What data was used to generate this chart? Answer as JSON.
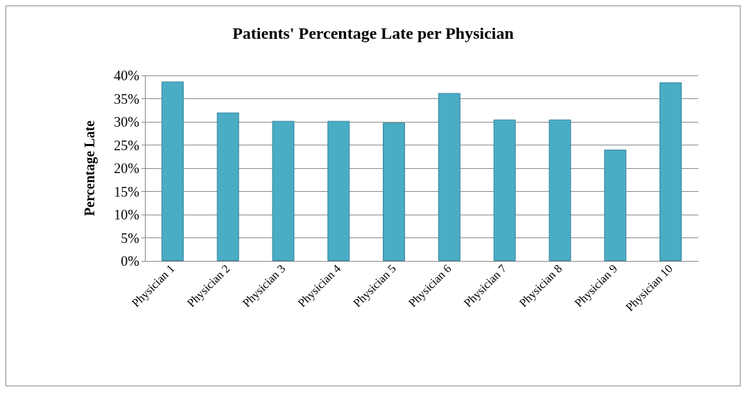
{
  "chart_data": {
    "type": "bar",
    "title": "Patients' Percentage Late per Physician",
    "ylabel": "Percentage Late",
    "categories": [
      "Physician 1",
      "Physician 2",
      "Physician 3",
      "Physician 4",
      "Physician 5",
      "Physician 6",
      "Physician 7",
      "Physician 8",
      "Physician 9",
      "Physician 10"
    ],
    "values": [
      38.7,
      32,
      30.2,
      30.2,
      29.8,
      36.2,
      30.5,
      30.5,
      24,
      38.5
    ],
    "color": "#4bacc6",
    "ylim": [
      0,
      40
    ],
    "yticks": [
      {
        "value": 0,
        "label": "0%"
      },
      {
        "value": 5,
        "label": "5%"
      },
      {
        "value": 10,
        "label": "10%"
      },
      {
        "value": 15,
        "label": "15%"
      },
      {
        "value": 20,
        "label": "20%"
      },
      {
        "value": 25,
        "label": "25%"
      },
      {
        "value": 30,
        "label": "30%"
      },
      {
        "value": 35,
        "label": "35%"
      },
      {
        "value": 40,
        "label": "40%"
      }
    ],
    "grid": "y"
  }
}
